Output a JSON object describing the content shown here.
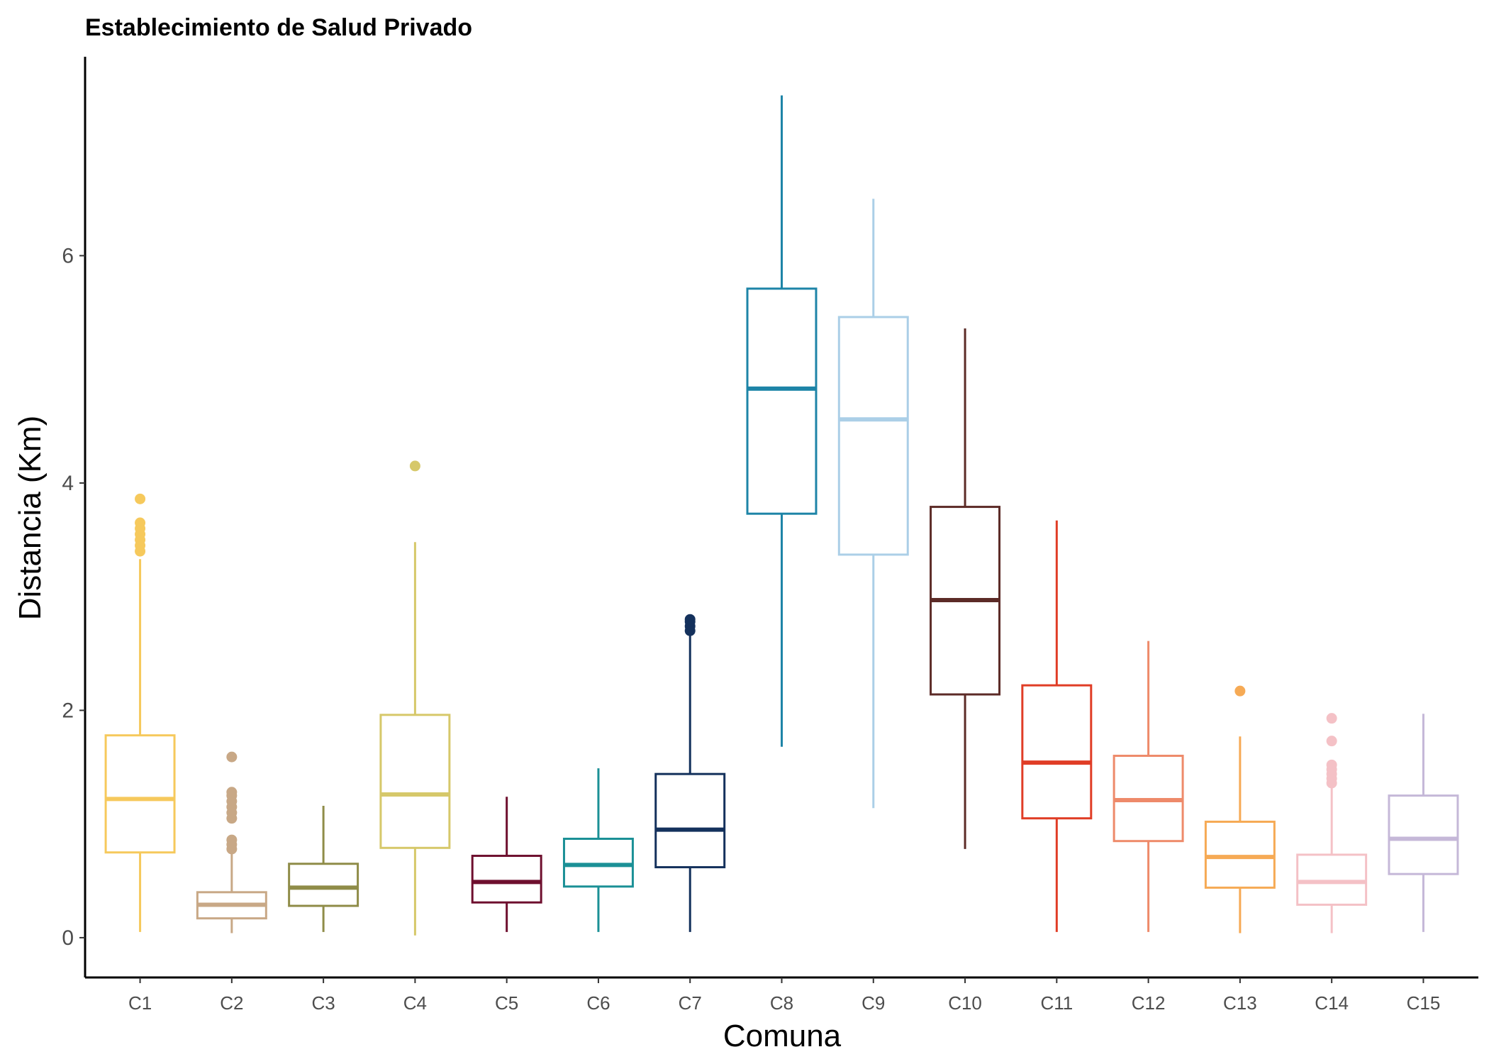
{
  "chart_data": {
    "type": "boxplot",
    "title": "Establecimiento de Salud Privado",
    "xlabel": "Comuna",
    "ylabel": "Distancia (Km)",
    "ylim": [
      -0.35,
      7.75
    ],
    "yticks": [
      0,
      2,
      4,
      6
    ],
    "grid": false,
    "legend": "none",
    "categories": [
      "C1",
      "C2",
      "C3",
      "C4",
      "C5",
      "C6",
      "C7",
      "C8",
      "C9",
      "C10",
      "C11",
      "C12",
      "C13",
      "C14",
      "C15"
    ],
    "series": [
      {
        "category": "C1",
        "color": "#f6c95c",
        "whisker_low": 0.05,
        "q1": 0.75,
        "median": 1.22,
        "q3": 1.78,
        "whisker_high": 3.33,
        "outliers": [
          3.4,
          3.45,
          3.5,
          3.55,
          3.6,
          3.65,
          3.86
        ]
      },
      {
        "category": "C2",
        "color": "#c8a886",
        "whisker_low": 0.04,
        "q1": 0.17,
        "median": 0.29,
        "q3": 0.4,
        "whisker_high": 0.75,
        "outliers": [
          0.78,
          0.82,
          0.86,
          1.05,
          1.1,
          1.15,
          1.2,
          1.25,
          1.28,
          1.59
        ]
      },
      {
        "category": "C3",
        "color": "#8f8c48",
        "whisker_low": 0.05,
        "q1": 0.28,
        "median": 0.44,
        "q3": 0.65,
        "whisker_high": 1.16,
        "outliers": []
      },
      {
        "category": "C4",
        "color": "#d6c86a",
        "whisker_low": 0.02,
        "q1": 0.79,
        "median": 1.26,
        "q3": 1.96,
        "whisker_high": 3.48,
        "outliers": [
          4.15
        ]
      },
      {
        "category": "C5",
        "color": "#6e0f2e",
        "whisker_low": 0.05,
        "q1": 0.31,
        "median": 0.49,
        "q3": 0.72,
        "whisker_high": 1.24,
        "outliers": []
      },
      {
        "category": "C6",
        "color": "#1b9096",
        "whisker_low": 0.05,
        "q1": 0.45,
        "median": 0.64,
        "q3": 0.87,
        "whisker_high": 1.49,
        "outliers": []
      },
      {
        "category": "C7",
        "color": "#14315c",
        "whisker_low": 0.05,
        "q1": 0.62,
        "median": 0.95,
        "q3": 1.44,
        "whisker_high": 2.66,
        "outliers": [
          2.7,
          2.74,
          2.78,
          2.8
        ]
      },
      {
        "category": "C8",
        "color": "#1d84a7",
        "whisker_low": 1.68,
        "q1": 3.73,
        "median": 4.83,
        "q3": 5.71,
        "whisker_high": 7.41,
        "outliers": []
      },
      {
        "category": "C9",
        "color": "#abcfe7",
        "whisker_low": 1.14,
        "q1": 3.37,
        "median": 4.56,
        "q3": 5.46,
        "whisker_high": 6.5,
        "outliers": []
      },
      {
        "category": "C10",
        "color": "#5c2b27",
        "whisker_low": 0.78,
        "q1": 2.14,
        "median": 2.97,
        "q3": 3.79,
        "whisker_high": 5.36,
        "outliers": []
      },
      {
        "category": "C11",
        "color": "#e03d26",
        "whisker_low": 0.05,
        "q1": 1.05,
        "median": 1.54,
        "q3": 2.22,
        "whisker_high": 3.67,
        "outliers": []
      },
      {
        "category": "C12",
        "color": "#ee8a6a",
        "whisker_low": 0.05,
        "q1": 0.85,
        "median": 1.21,
        "q3": 1.6,
        "whisker_high": 2.61,
        "outliers": []
      },
      {
        "category": "C13",
        "color": "#f6aa55",
        "whisker_low": 0.04,
        "q1": 0.44,
        "median": 0.71,
        "q3": 1.02,
        "whisker_high": 1.77,
        "outliers": [
          2.17
        ]
      },
      {
        "category": "C14",
        "color": "#f4c1c6",
        "whisker_low": 0.04,
        "q1": 0.29,
        "median": 0.49,
        "q3": 0.73,
        "whisker_high": 1.33,
        "outliers": [
          1.36,
          1.4,
          1.44,
          1.48,
          1.52,
          1.73,
          1.93
        ]
      },
      {
        "category": "C15",
        "color": "#c5b8d8",
        "whisker_low": 0.05,
        "q1": 0.56,
        "median": 0.87,
        "q3": 1.25,
        "whisker_high": 1.97,
        "outliers": []
      }
    ]
  }
}
